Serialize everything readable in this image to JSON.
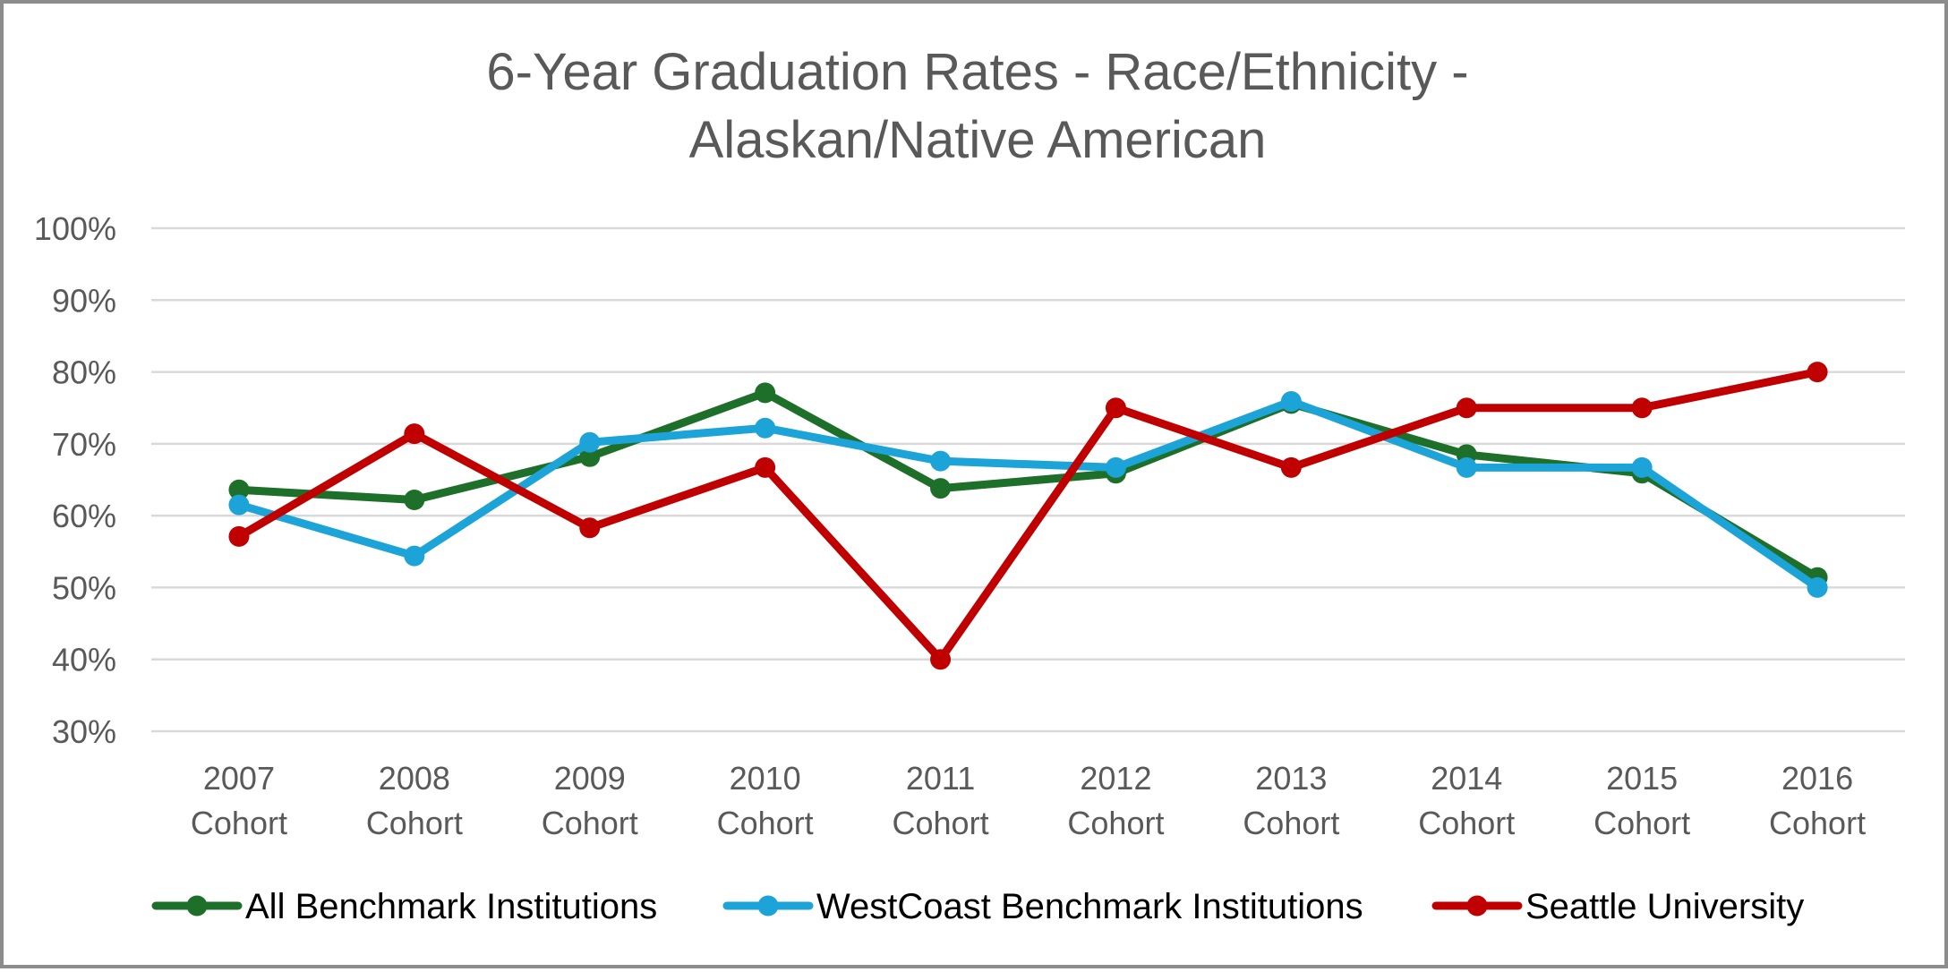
{
  "chart_data": {
    "type": "line",
    "title": [
      "6-Year Graduation Rates - Race/Ethnicity -",
      "Alaskan/Native American"
    ],
    "categories": [
      [
        "2007",
        "Cohort"
      ],
      [
        "2008",
        "Cohort"
      ],
      [
        "2009",
        "Cohort"
      ],
      [
        "2010",
        "Cohort"
      ],
      [
        "2011",
        "Cohort"
      ],
      [
        "2012",
        "Cohort"
      ],
      [
        "2013",
        "Cohort"
      ],
      [
        "2014",
        "Cohort"
      ],
      [
        "2015",
        "Cohort"
      ],
      [
        "2016",
        "Cohort"
      ]
    ],
    "y_ticks": [
      "30%",
      "40%",
      "50%",
      "60%",
      "70%",
      "80%",
      "90%",
      "100%"
    ],
    "ylim": [
      30,
      100
    ],
    "grid": true,
    "legend_position": "bottom",
    "series": [
      {
        "name": "All Benchmark Institutions",
        "color": "#1e6f2a",
        "values": [
          63.6,
          62.2,
          68.2,
          77.1,
          63.8,
          65.9,
          75.6,
          68.5,
          65.9,
          51.4
        ]
      },
      {
        "name": "WestCoast Benchmark Institutions",
        "color": "#1ca3d8",
        "values": [
          61.5,
          54.4,
          70.2,
          72.2,
          67.6,
          66.7,
          75.9,
          66.7,
          66.7,
          50.0
        ]
      },
      {
        "name": "Seattle University",
        "color": "#c00000",
        "values": [
          57.1,
          71.4,
          58.3,
          66.7,
          40.0,
          75.0,
          66.7,
          75.0,
          75.0,
          80.0
        ]
      }
    ]
  }
}
